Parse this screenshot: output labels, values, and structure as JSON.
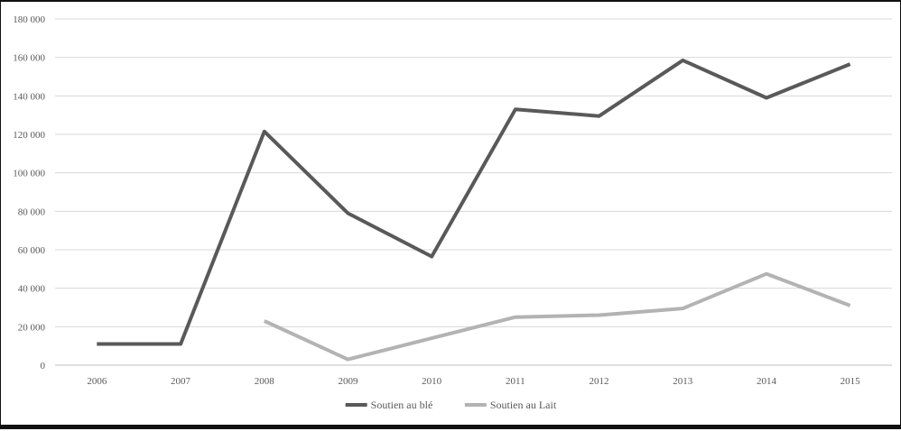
{
  "chart_data": {
    "type": "line",
    "categories": [
      "2006",
      "2007",
      "2008",
      "2009",
      "2010",
      "2011",
      "2012",
      "2013",
      "2014",
      "2015"
    ],
    "ylim": [
      0,
      180000
    ],
    "yticks": [
      0,
      20000,
      40000,
      60000,
      80000,
      100000,
      120000,
      140000,
      160000,
      180000
    ],
    "ytick_labels": [
      "0",
      "20 000",
      "40 000",
      "60 000",
      "80 000",
      "100 000",
      "120 000",
      "140 000",
      "160 000",
      "180 000"
    ],
    "grid": true,
    "legend_position": "bottom",
    "series": [
      {
        "name": "Soutien au blé",
        "color": "#595959",
        "values": [
          11000,
          11000,
          121500,
          79000,
          56500,
          133000,
          129500,
          158500,
          139000,
          156500
        ]
      },
      {
        "name": "Soutien au Lait",
        "color": "#b3b3b3",
        "values": [
          null,
          null,
          23000,
          3000,
          14000,
          25000,
          26000,
          29500,
          47500,
          31000
        ]
      }
    ]
  }
}
